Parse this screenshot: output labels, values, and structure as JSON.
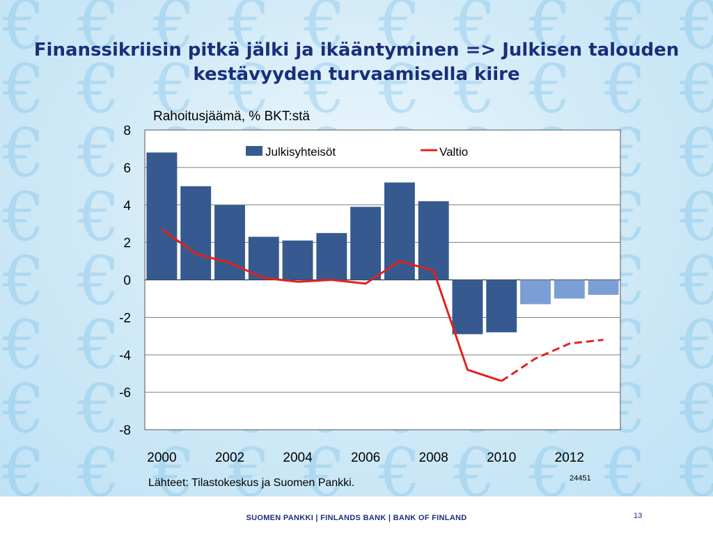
{
  "slide": {
    "title": "Finanssikriisin pitkä jälki ja ikääntyminen => Julkisen talouden kestävyyden turvaamisella kiire",
    "source": "Lähteet: Tilastokeskus ja Suomen Pankki.",
    "chart_id": "24451",
    "footer_text": "SUOMEN PANKKI | FINLANDS BANK | BANK OF FINLAND",
    "page_number": "13",
    "background_icon": "euro-sign-icon"
  },
  "chart_data": {
    "type": "bar",
    "title": "Rahoitusjäämä, % BKT:stä",
    "xlabel": "",
    "ylabel": "",
    "x": [
      2000,
      2001,
      2002,
      2003,
      2004,
      2005,
      2006,
      2007,
      2008,
      2009,
      2010,
      2011,
      2012,
      2013
    ],
    "x_tick_labels": [
      "2000",
      "2002",
      "2004",
      "2006",
      "2008",
      "2010",
      "2012"
    ],
    "ylim": [
      -8,
      8
    ],
    "y_ticks": [
      "8",
      "6",
      "4",
      "2",
      "0",
      "-2",
      "-4",
      "-6",
      "-8"
    ],
    "grid": true,
    "legend": "top",
    "series": [
      {
        "name": "Julkisyhteisöt",
        "kind": "bar",
        "color": "#365a8f",
        "forecast_color": "#7b9fd4",
        "forecast_from": 2011,
        "values": [
          6.8,
          5.0,
          4.0,
          2.3,
          2.1,
          2.5,
          3.9,
          5.2,
          4.2,
          -2.9,
          -2.8,
          -1.3,
          -1.0,
          -0.8
        ]
      },
      {
        "name": "Valtio",
        "kind": "line",
        "color": "#e3201b",
        "forecast_from": 2010,
        "x": [
          2000,
          2001,
          2002,
          2003,
          2004,
          2005,
          2006,
          2007,
          2008,
          2009,
          2010,
          2011,
          2012,
          2013
        ],
        "values": [
          2.7,
          1.4,
          0.9,
          0.1,
          -0.1,
          0.0,
          -0.2,
          1.0,
          0.5,
          -4.8,
          -5.4,
          -4.2,
          -3.4,
          -3.2
        ]
      }
    ]
  }
}
